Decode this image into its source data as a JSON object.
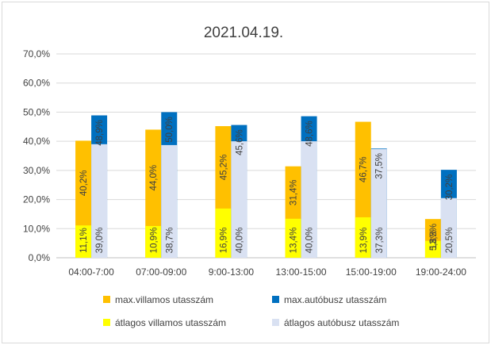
{
  "chart_data": {
    "type": "bar",
    "title": "2021.04.19.",
    "categories": [
      "04:00-7:00",
      "07:00-09:00",
      "9:00-13:00",
      "13:00-15:00",
      "15:00-19:00",
      "19:00-24:00"
    ],
    "ylim": [
      0,
      70
    ],
    "yticks": [
      0,
      10,
      20,
      30,
      40,
      50,
      60,
      70
    ],
    "ytick_labels": [
      "0,0%",
      "10,0%",
      "20,0%",
      "30,0%",
      "40,0%",
      "50,0%",
      "60,0%",
      "70,0%"
    ],
    "grid": true,
    "legend_position": "bottom",
    "series": [
      {
        "name": "max.villamos utasszám",
        "group": "villamos",
        "layer": "max",
        "color": "#FFC000",
        "values": [
          40.2,
          44.0,
          45.2,
          31.4,
          46.7,
          13.3
        ],
        "labels": [
          "40,2%",
          "44,0%",
          "45,2%",
          "31,4%",
          "46,7%",
          "13,3%"
        ]
      },
      {
        "name": "max.autóbusz utasszám",
        "group": "autobusz",
        "layer": "max",
        "color": "#0070C0",
        "values": [
          48.9,
          50.0,
          45.6,
          48.6,
          37.5,
          30.2
        ],
        "labels": [
          "48,9%",
          "50,0%",
          "45,6%",
          "48,6%",
          "37,5%",
          "30,2%"
        ]
      },
      {
        "name": "átlagos villamos utasszám",
        "group": "villamos",
        "layer": "avg",
        "color": "#FFFF00",
        "values": [
          11.1,
          10.9,
          16.9,
          13.4,
          13.9,
          5.8
        ],
        "labels": [
          "11,1%",
          "10,9%",
          "16,9%",
          "13,4%",
          "13,9%",
          "5,8%"
        ]
      },
      {
        "name": "átlagos autóbusz utasszám",
        "group": "autobusz",
        "layer": "avg",
        "color": "#D9E1F2",
        "values": [
          39.0,
          38.7,
          40.0,
          40.0,
          37.3,
          20.5
        ],
        "labels": [
          "39,0%",
          "38,7%",
          "40,0%",
          "40,0%",
          "37,3%",
          "20,5%"
        ]
      }
    ]
  }
}
